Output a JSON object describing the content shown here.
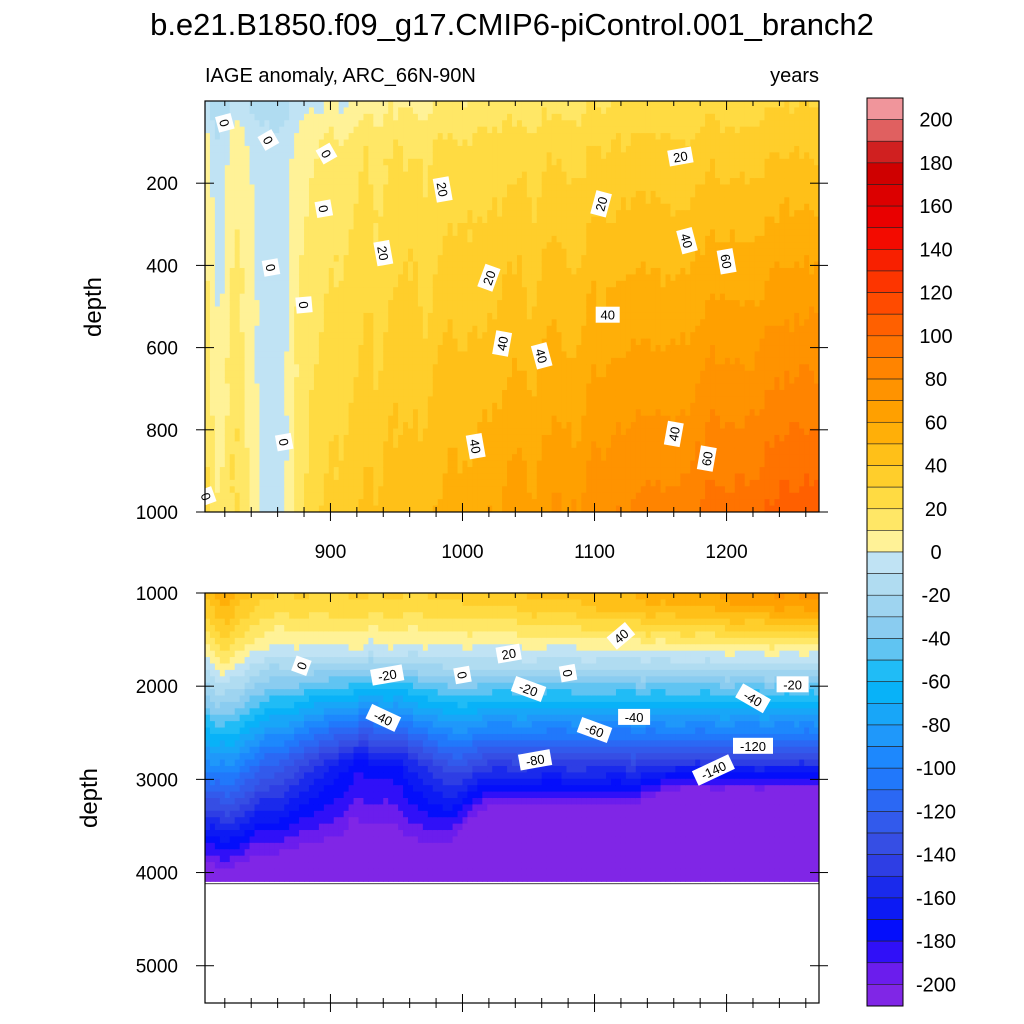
{
  "chart_data": {
    "type": "contour",
    "title": "b.e21.B1850.f09_g17.CMIP6-piControl.001_branch2",
    "subtitle_left": "IAGE anomaly, ARC_66N-90N",
    "subtitle_right": "years",
    "xlabel": "",
    "ylabel": "depth",
    "x_range": [
      805,
      1270
    ],
    "x_ticks": [
      900,
      1000,
      1100,
      1200
    ],
    "panels": [
      {
        "name": "upper",
        "ylim": [
          0,
          1000
        ],
        "y_ticks": [
          200,
          400,
          600,
          800,
          1000
        ],
        "contour_labels": [
          {
            "text": "0",
            "x": 853,
            "y": 95,
            "rot": 60
          },
          {
            "text": "0",
            "x": 806,
            "y": 962,
            "rot": 70
          },
          {
            "text": "0",
            "x": 820,
            "y": 53,
            "rot": 75
          },
          {
            "text": "0",
            "x": 855,
            "y": 405,
            "rot": 80
          },
          {
            "text": "0",
            "x": 865,
            "y": 830,
            "rot": 80
          },
          {
            "text": "0",
            "x": 880,
            "y": 496,
            "rot": 85
          },
          {
            "text": "0",
            "x": 895,
            "y": 262,
            "rot": 80
          },
          {
            "text": "0",
            "x": 897,
            "y": 128,
            "rot": 60
          },
          {
            "text": "20",
            "x": 940,
            "y": 370,
            "rot": 80
          },
          {
            "text": "20",
            "x": 985,
            "y": 215,
            "rot": 80
          },
          {
            "text": "20",
            "x": 1020,
            "y": 430,
            "rot": -70
          },
          {
            "text": "20",
            "x": 1105,
            "y": 250,
            "rot": -75
          },
          {
            "text": "20",
            "x": 1165,
            "y": 135,
            "rot": -10
          },
          {
            "text": "40",
            "x": 1010,
            "y": 840,
            "rot": 80
          },
          {
            "text": "40",
            "x": 1030,
            "y": 590,
            "rot": -80
          },
          {
            "text": "40",
            "x": 1060,
            "y": 620,
            "rot": 75
          },
          {
            "text": "40",
            "x": 1110,
            "y": 520,
            "rot": 0
          },
          {
            "text": "40",
            "x": 1160,
            "y": 810,
            "rot": -80
          },
          {
            "text": "40",
            "x": 1170,
            "y": 340,
            "rot": 75
          },
          {
            "text": "60",
            "x": 1200,
            "y": 390,
            "rot": 80
          },
          {
            "text": "60",
            "x": 1185,
            "y": 870,
            "rot": -80
          }
        ]
      },
      {
        "name": "lower",
        "ylim": [
          1000,
          5400
        ],
        "y_ticks": [
          1000,
          2000,
          3000,
          4000,
          5000
        ],
        "data_bottom": 4120,
        "contour_labels": [
          {
            "text": "0",
            "x": 878,
            "y": 1780,
            "rot": -70
          },
          {
            "text": "-20",
            "x": 943,
            "y": 1880,
            "rot": -10
          },
          {
            "text": "0",
            "x": 1000,
            "y": 1880,
            "rot": 80
          },
          {
            "text": "20",
            "x": 1035,
            "y": 1650,
            "rot": -10
          },
          {
            "text": "-20",
            "x": 1050,
            "y": 2030,
            "rot": 20
          },
          {
            "text": "0",
            "x": 1080,
            "y": 1860,
            "rot": 80
          },
          {
            "text": "40",
            "x": 1120,
            "y": 1460,
            "rot": -40
          },
          {
            "text": "-40",
            "x": 940,
            "y": 2340,
            "rot": 25
          },
          {
            "text": "-80",
            "x": 1055,
            "y": 2790,
            "rot": -10
          },
          {
            "text": "-60",
            "x": 1100,
            "y": 2470,
            "rot": 20
          },
          {
            "text": "-40",
            "x": 1130,
            "y": 2330,
            "rot": 0
          },
          {
            "text": "-140",
            "x": 1190,
            "y": 2900,
            "rot": -25
          },
          {
            "text": "-120",
            "x": 1220,
            "y": 2640,
            "rot": 0
          },
          {
            "text": "-40",
            "x": 1220,
            "y": 2130,
            "rot": 30
          },
          {
            "text": "-20",
            "x": 1250,
            "y": 1980,
            "rot": 0
          }
        ]
      }
    ],
    "colorbar": {
      "min": -210,
      "max": 210,
      "step": 10,
      "tick_labels": [
        200,
        180,
        160,
        140,
        120,
        100,
        80,
        60,
        40,
        20,
        0,
        -20,
        -40,
        -60,
        -80,
        -100,
        -120,
        -140,
        -160,
        -180,
        -200
      ]
    }
  }
}
